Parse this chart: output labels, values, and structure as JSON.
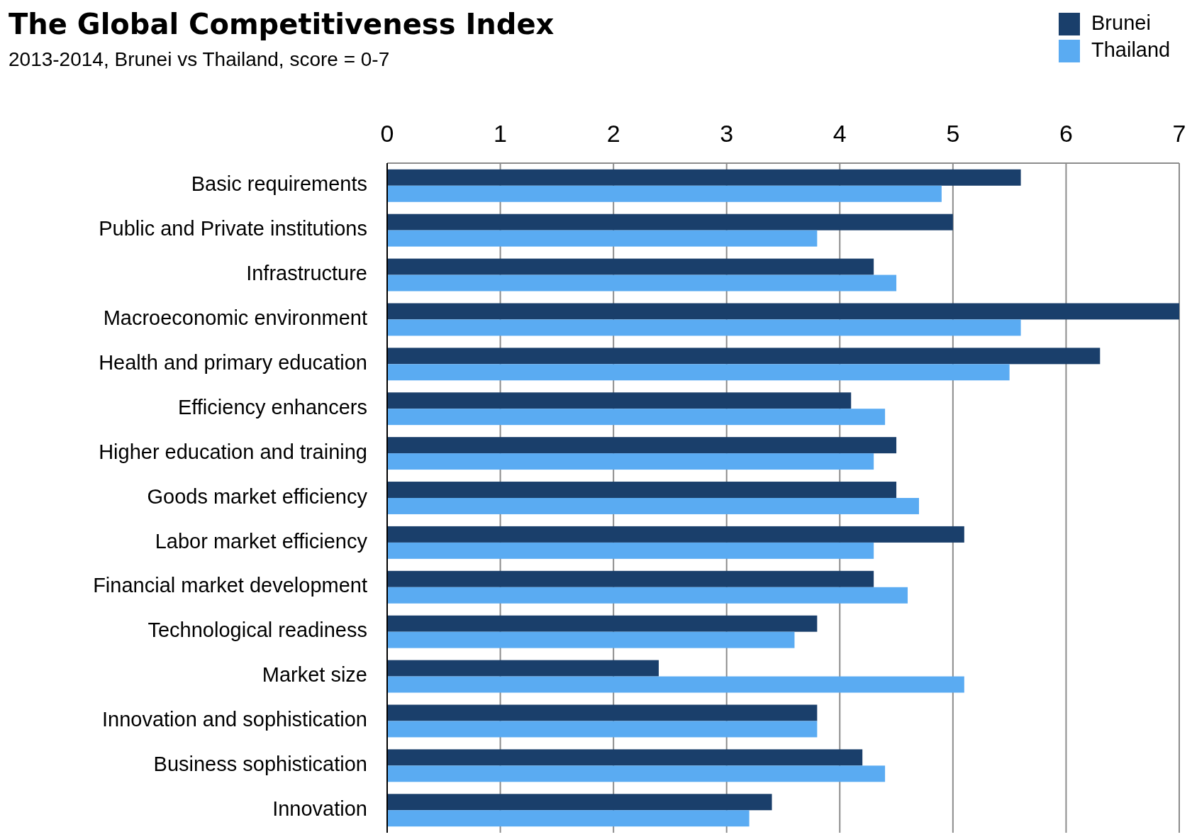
{
  "chart_data": {
    "type": "bar",
    "orientation": "horizontal",
    "title": "The Global Competitiveness Index",
    "subtitle": "2013-2014, Brunei vs Thailand, score = 0-7",
    "categories": [
      "Basic requirements",
      "Public and Private institutions",
      "Infrastructure",
      "Macroeconomic environment",
      "Health and primary education",
      "Efficiency enhancers",
      "Higher education and training",
      "Goods market efficiency",
      "Labor market efficiency",
      "Financial market development",
      "Technological readiness",
      "Market size",
      "Innovation and sophistication",
      "Business sophistication",
      "Innovation"
    ],
    "series": [
      {
        "name": "Brunei",
        "color": "#1a3f6b",
        "values": [
          5.6,
          5.0,
          4.3,
          7.0,
          6.3,
          4.1,
          4.5,
          4.5,
          5.1,
          4.3,
          3.8,
          2.4,
          3.8,
          4.2,
          3.4
        ]
      },
      {
        "name": "Thailand",
        "color": "#5aabf2",
        "values": [
          4.9,
          3.8,
          4.5,
          5.6,
          5.5,
          4.4,
          4.3,
          4.7,
          4.3,
          4.6,
          3.6,
          5.1,
          3.8,
          4.4,
          3.2
        ]
      }
    ],
    "xlim": [
      0,
      7
    ],
    "xticks": [
      0,
      1,
      2,
      3,
      4,
      5,
      6,
      7
    ],
    "grid": "x",
    "legend": "top right"
  }
}
